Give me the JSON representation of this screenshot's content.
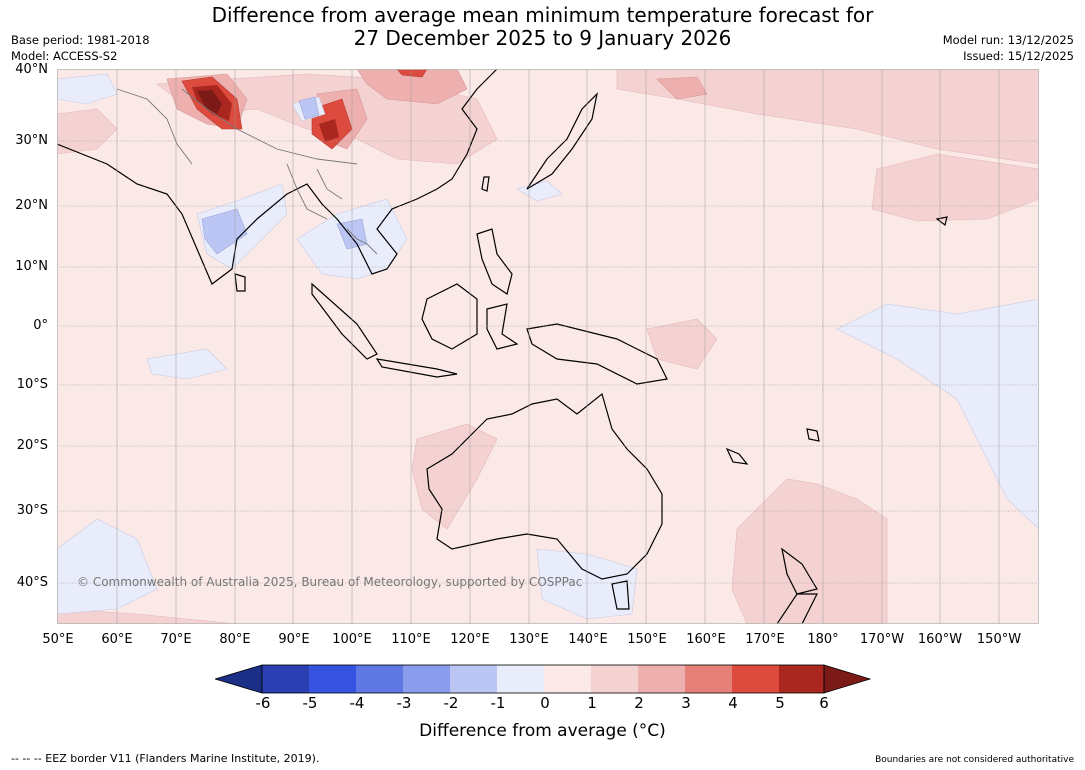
{
  "title": {
    "line1": "Difference from average mean minimum temperature forecast for",
    "line2": "27 December 2025 to 9 January 2026"
  },
  "meta": {
    "base_period": "Base period: 1981-2018",
    "model": "Model: ACCESS-S2",
    "model_run": "Model run: 13/12/2025",
    "issued": "Issued: 15/12/2025"
  },
  "map": {
    "copyright": "© Commonwealth of Australia 2025, Bureau of Meteorology, supported by COSPPac",
    "lat_labels": [
      "40°N",
      "30°N",
      "20°N",
      "10°N",
      "0°",
      "10°S",
      "20°S",
      "30°S",
      "40°S"
    ],
    "lon_labels": [
      "50°E",
      "60°E",
      "70°E",
      "80°E",
      "90°E",
      "100°E",
      "110°E",
      "120°E",
      "130°E",
      "140°E",
      "150°E",
      "160°E",
      "170°E",
      "180°",
      "170°W",
      "160°W",
      "150°W"
    ]
  },
  "colorbar": {
    "ticks": [
      "-6",
      "-5",
      "-4",
      "-3",
      "-2",
      "-1",
      "0",
      "1",
      "2",
      "3",
      "4",
      "5",
      "6"
    ],
    "colors": [
      "#1c2f87",
      "#2a3fb2",
      "#3553e0",
      "#5f78e4",
      "#8a9cec",
      "#bcc6f4",
      "#e9ecfb",
      "#fbe9e8",
      "#f5d2d2",
      "#eeb0ae",
      "#e6817a",
      "#dd4a3e",
      "#a9271f",
      "#7c1a17"
    ],
    "label": "Difference from average (°C)"
  },
  "footer": {
    "left": "-- -- -- EEZ border V11 (Flanders Marine Institute, 2019).",
    "right": "Boundaries are not considered authoritative"
  }
}
